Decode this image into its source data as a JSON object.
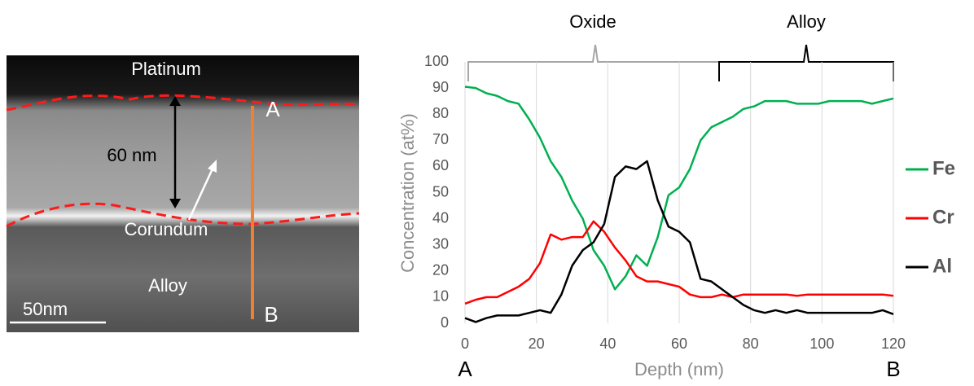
{
  "image": {
    "labels": {
      "platinum": "Platinum",
      "point_a": "A",
      "thickness": "60 nm",
      "corundum": "Corundum",
      "alloy": "Alloy",
      "scale": "50nm",
      "point_b": "B"
    }
  },
  "chart_data": {
    "type": "line",
    "x_label": "Depth (nm)",
    "y_label": "Concentration (at%)",
    "annotations": {
      "oxide": "Oxide",
      "alloy": "Alloy",
      "start": "A",
      "end": "B"
    },
    "x": [
      0,
      3,
      6,
      9,
      12,
      15,
      18,
      21,
      24,
      27,
      30,
      33,
      36,
      39,
      42,
      45,
      48,
      51,
      54,
      57,
      60,
      63,
      66,
      69,
      72,
      75,
      78,
      81,
      84,
      87,
      90,
      93,
      96,
      99,
      102,
      105,
      108,
      111,
      114,
      117,
      120
    ],
    "series": [
      {
        "name": "Fe",
        "color": "#00b050",
        "values": [
          90.5,
          90,
          88,
          87,
          85,
          84,
          78,
          71,
          62,
          56,
          47,
          40,
          28,
          22,
          13,
          18,
          26,
          22,
          33,
          49,
          52,
          59,
          70,
          75,
          77,
          79,
          82,
          83,
          85,
          85,
          85,
          84,
          84,
          84,
          85,
          85,
          85,
          85,
          84,
          85,
          86
        ]
      },
      {
        "name": "Cr",
        "color": "#ff0000",
        "values": [
          7.5,
          9,
          10,
          10,
          12,
          14,
          17,
          23,
          34,
          32,
          33,
          33,
          39,
          35,
          29,
          24,
          18,
          16,
          16,
          15,
          14,
          11,
          10,
          10,
          11,
          10,
          11,
          11,
          11,
          11,
          11,
          10.5,
          11,
          11,
          11,
          11,
          11,
          11,
          11,
          11,
          10.5
        ]
      },
      {
        "name": "Al",
        "color": "#000000",
        "values": [
          2,
          0.5,
          2,
          3,
          3,
          3,
          4,
          5,
          4,
          11,
          22,
          28,
          31,
          38,
          56,
          60,
          59,
          62,
          47,
          37,
          35,
          31,
          17,
          16,
          13,
          10,
          7,
          5,
          4,
          5,
          4,
          5,
          4,
          4,
          4,
          4,
          4,
          4,
          4,
          5,
          3.5
        ]
      }
    ],
    "xlim": [
      0,
      120
    ],
    "xticks": [
      0,
      20,
      40,
      60,
      80,
      100,
      120
    ],
    "ylim": [
      0,
      100
    ],
    "yticks": [
      0,
      10,
      20,
      30,
      40,
      50,
      60,
      70,
      80,
      90,
      100
    ],
    "grid": "x",
    "legend": "right"
  }
}
